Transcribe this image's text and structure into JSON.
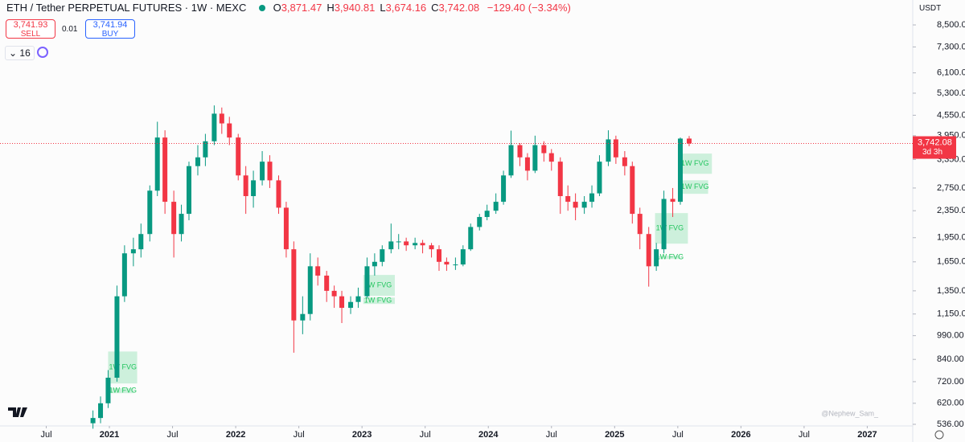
{
  "header": {
    "symbol": "ETH / Tether PERPETUAL FUTURES · 1W · MEXC",
    "ohlc": [
      {
        "key": "O",
        "value": "3,871.47"
      },
      {
        "key": "H",
        "value": "3,940.81"
      },
      {
        "key": "L",
        "value": "3,674.16"
      },
      {
        "key": "C",
        "value": "3,742.08"
      }
    ],
    "change": "−129.40 (−3.34%)",
    "sell_price": "3,741.93",
    "sell_label": "SELL",
    "spread": "0.01",
    "buy_price": "3,741.94",
    "buy_label": "BUY",
    "indicator_count": "16",
    "currency": "USDT",
    "watermark": "@Nephew_Sam_"
  },
  "chart_data": {
    "type": "candlestick",
    "log_scale": true,
    "up_color": "#089981",
    "down_color": "#f23645",
    "xlim": [
      2020.134,
      2027.36
    ],
    "ylim": [
      507,
      10100
    ],
    "xticks": [
      {
        "value": 2020.5,
        "label": "Jul"
      },
      {
        "value": 2021,
        "label": "2021"
      },
      {
        "value": 2021.5,
        "label": "Jul"
      },
      {
        "value": 2022,
        "label": "2022"
      },
      {
        "value": 2022.5,
        "label": "Jul"
      },
      {
        "value": 2023,
        "label": "2023"
      },
      {
        "value": 2023.5,
        "label": "Jul"
      },
      {
        "value": 2024,
        "label": "2024"
      },
      {
        "value": 2024.5,
        "label": "Jul"
      },
      {
        "value": 2025,
        "label": "2025"
      },
      {
        "value": 2025.5,
        "label": "Jul"
      },
      {
        "value": 2026,
        "label": "2026"
      },
      {
        "value": 2026.5,
        "label": "Jul"
      },
      {
        "value": 2027,
        "label": "2027"
      }
    ],
    "yticks": [
      {
        "value": 8500,
        "label": "8,500.00"
      },
      {
        "value": 7300,
        "label": "7,300.00"
      },
      {
        "value": 6100,
        "label": "6,100.00"
      },
      {
        "value": 5300,
        "label": "5,300.00"
      },
      {
        "value": 4550,
        "label": "4,550.00"
      },
      {
        "value": 3950,
        "label": "3,950.00"
      },
      {
        "value": 3350,
        "label": "3,350.00"
      },
      {
        "value": 2750,
        "label": "2,750.00"
      },
      {
        "value": 2350,
        "label": "2,350.00"
      },
      {
        "value": 1950,
        "label": "1,950.00"
      },
      {
        "value": 1650,
        "label": "1,650.00"
      },
      {
        "value": 1350,
        "label": "1,350.00"
      },
      {
        "value": 1150,
        "label": "1,150.00"
      },
      {
        "value": 990,
        "label": "990.00"
      },
      {
        "value": 840,
        "label": "840.00"
      },
      {
        "value": 720,
        "label": "720.00"
      },
      {
        "value": 620,
        "label": "620.00"
      },
      {
        "value": 536,
        "label": "536.00"
      }
    ],
    "x": [
      2020.87,
      2020.93,
      2020.99,
      2021.06,
      2021.12,
      2021.19,
      2021.25,
      2021.32,
      2021.38,
      2021.44,
      2021.51,
      2021.57,
      2021.63,
      2021.7,
      2021.76,
      2021.83,
      2021.89,
      2021.95,
      2022.02,
      2022.08,
      2022.14,
      2022.21,
      2022.27,
      2022.34,
      2022.4,
      2022.46,
      2022.53,
      2022.59,
      2022.65,
      2022.72,
      2022.78,
      2022.84,
      2022.91,
      2022.97,
      2023.04,
      2023.1,
      2023.16,
      2023.23,
      2023.29,
      2023.35,
      2023.42,
      2023.48,
      2023.55,
      2023.61,
      2023.67,
      2023.74,
      2023.8,
      2023.86,
      2023.93,
      2023.99,
      2024.06,
      2024.12,
      2024.18,
      2024.25,
      2024.31,
      2024.37,
      2024.44,
      2024.5,
      2024.57,
      2024.63,
      2024.69,
      2024.76,
      2024.82,
      2024.88,
      2024.95,
      2025.01,
      2025.08,
      2025.14,
      2025.2,
      2025.27,
      2025.33,
      2025.39,
      2025.46,
      2025.52,
      2025.59
    ],
    "open": [
      540,
      560,
      620,
      740,
      1300,
      1750,
      1800,
      2000,
      2700,
      3900,
      2500,
      2000,
      2300,
      3200,
      3400,
      3800,
      4600,
      4300,
      3900,
      3000,
      2600,
      2900,
      3300,
      2900,
      2400,
      1800,
      1100,
      1150,
      1600,
      1500,
      1350,
      1300,
      1200,
      1250,
      1300,
      1600,
      1650,
      1800,
      1900,
      1900,
      1850,
      1880,
      1850,
      1800,
      1650,
      1620,
      1620,
      1800,
      2100,
      2250,
      2350,
      2500,
      3000,
      3700,
      3400,
      3100,
      3700,
      3500,
      3300,
      2600,
      2500,
      2400,
      2500,
      2650,
      3300,
      3850,
      3400,
      3200,
      2300,
      2000,
      1600,
      1800,
      2550,
      2500,
      3871.47
    ],
    "high": [
      590,
      650,
      780,
      1400,
      1850,
      1950,
      2150,
      2800,
      4350,
      4100,
      2700,
      2450,
      3300,
      3700,
      4000,
      4870,
      4800,
      4500,
      4000,
      3200,
      3100,
      3550,
      3450,
      3000,
      2500,
      1900,
      1300,
      1750,
      1700,
      1550,
      1400,
      1350,
      1300,
      1380,
      1700,
      1750,
      1850,
      2150,
      2000,
      1950,
      1950,
      1920,
      1880,
      1850,
      1700,
      1700,
      1850,
      2150,
      2300,
      2450,
      2650,
      3100,
      4090,
      3750,
      3500,
      3950,
      3800,
      3600,
      3400,
      2800,
      2650,
      2600,
      2800,
      3450,
      4100,
      3950,
      3550,
      3300,
      2400,
      2100,
      1880,
      2700,
      2750,
      3900,
      3940.81
    ],
    "low": [
      520,
      540,
      600,
      720,
      1250,
      1600,
      1700,
      1900,
      2600,
      2300,
      1700,
      1900,
      2200,
      3000,
      3200,
      3700,
      4000,
      3700,
      2900,
      2300,
      2400,
      2800,
      2750,
      2300,
      1700,
      880,
      1000,
      1100,
      1400,
      1250,
      1200,
      1080,
      1150,
      1200,
      1280,
      1500,
      1600,
      1750,
      1800,
      1780,
      1800,
      1750,
      1700,
      1550,
      1550,
      1560,
      1600,
      1780,
      2050,
      2200,
      2300,
      2450,
      2950,
      3200,
      2900,
      3050,
      3300,
      3100,
      2300,
      2350,
      2200,
      2300,
      2400,
      2600,
      3200,
      3250,
      3000,
      2150,
      1800,
      1390,
      1550,
      1750,
      2250,
      2450,
      3674.16
    ],
    "close": [
      560,
      620,
      740,
      1300,
      1750,
      1800,
      2000,
      2700,
      3900,
      2500,
      2000,
      2300,
      3200,
      3400,
      3800,
      4600,
      4300,
      3900,
      3000,
      2600,
      2900,
      3300,
      2900,
      2400,
      1800,
      1100,
      1150,
      1600,
      1500,
      1350,
      1300,
      1200,
      1250,
      1300,
      1600,
      1650,
      1800,
      1900,
      1900,
      1850,
      1880,
      1850,
      1800,
      1650,
      1620,
      1620,
      1800,
      2100,
      2250,
      2350,
      2500,
      3000,
      3700,
      3400,
      3100,
      3700,
      3500,
      3300,
      2600,
      2500,
      2400,
      2500,
      2650,
      3300,
      3850,
      3400,
      3200,
      2300,
      2000,
      1600,
      1800,
      2550,
      2500,
      3871.47,
      3742.08
    ],
    "last_price_label": "3,742.08",
    "countdown": "3d 3h",
    "fvg_color": "#b9ebcf",
    "fvg_text_color": "#22c55e",
    "fvg_zones": [
      {
        "label": "1W FVG",
        "x": [
          2020.99,
          2021.22
        ],
        "y": [
          711,
          887
        ]
      },
      {
        "label": "1W FVG",
        "x": [
          2020.99,
          2021.19
        ],
        "y": [
          665,
          688
        ]
      },
      {
        "label": "1W FVG",
        "x": [
          2023.01,
          2023.26
        ],
        "y": [
          1304,
          1507
        ]
      },
      {
        "label": "1W FVG",
        "x": [
          2023.01,
          2023.26
        ],
        "y": [
          1233,
          1288
        ]
      },
      {
        "label": "1W FVG",
        "x": [
          2025.32,
          2025.58
        ],
        "y": [
          1871,
          2312
        ]
      },
      {
        "label": "1W FVG",
        "x": [
          2025.32,
          2025.52
        ],
        "y": [
          1683,
          1722
        ]
      },
      {
        "label": "1W FVG",
        "x": [
          2025.52,
          2025.77
        ],
        "y": [
          3034,
          3490
        ]
      },
      {
        "label": "1W FVG",
        "x": [
          2025.52,
          2025.74
        ],
        "y": [
          2642,
          2902
        ]
      }
    ]
  }
}
